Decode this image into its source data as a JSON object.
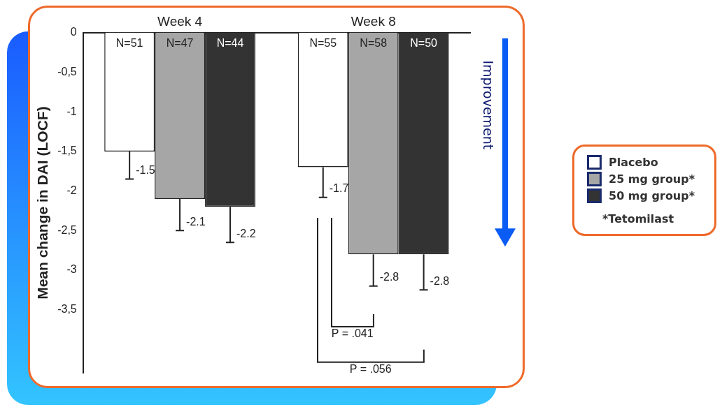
{
  "chart_data": {
    "type": "bar",
    "ylabel": "Mean change in DAI (LOCF)",
    "categories": [
      "Week 4",
      "Week 8"
    ],
    "series": [
      {
        "name": "Placebo",
        "color": "#ffffff",
        "values": [
          -1.5,
          -1.7
        ],
        "errors": [
          [
            -1.85,
            -1.5
          ],
          [
            -2.08,
            -1.7
          ]
        ]
      },
      {
        "name": "25 mg group*",
        "color": "#a6a6a6",
        "values": [
          -2.1,
          -2.8
        ],
        "errors": [
          [
            -2.5,
            -2.1
          ],
          [
            -3.2,
            -2.8
          ]
        ]
      },
      {
        "name": "50 mg group*",
        "color": "#333333",
        "values": [
          -2.2,
          -2.8
        ],
        "errors": [
          [
            -2.65,
            -2.2
          ],
          [
            -3.25,
            -2.8
          ]
        ]
      }
    ],
    "ylim": [
      -4.3,
      0
    ],
    "yticks": [
      0,
      {
        "value": -0.5,
        "label": "-0,5"
      },
      -1,
      {
        "value": -1.5,
        "label": "-1,5"
      },
      -2,
      {
        "value": -2.5,
        "label": "-2,5"
      },
      -3,
      {
        "value": -3.5,
        "label": "-3,5"
      }
    ],
    "data_labels": true,
    "grid": false,
    "legend": "right",
    "annotations": [
      "N=51",
      "N=47",
      "N=44",
      "N=55",
      "N=58",
      "N=50",
      "Improvement",
      "*Tetomilast",
      "P = .041",
      "P = .056"
    ]
  }
}
